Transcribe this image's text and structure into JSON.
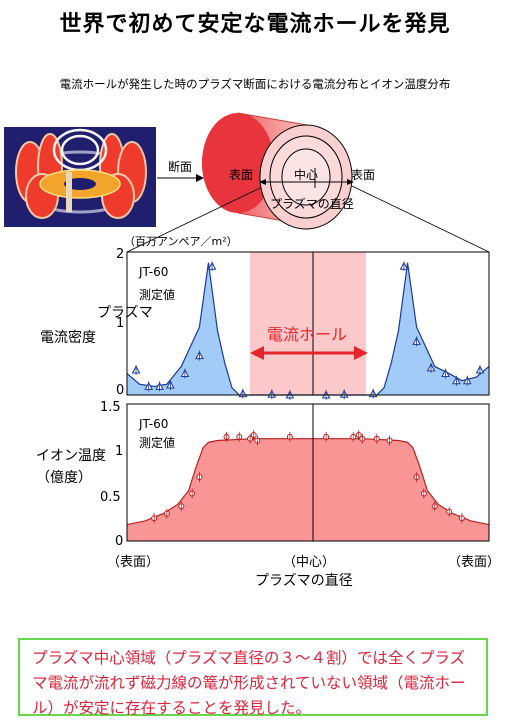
{
  "title": "世界で初めて安定な電流ホールを発見",
  "subtitle": "電流ホールが発生した時のプラズマ断面における電流分布とイオン温度分布",
  "diagram": {
    "cross_section_label": "断面",
    "surface_left": "表面",
    "center": "中心",
    "surface_right": "表面",
    "plasma_diameter": "プラズマの直径"
  },
  "colors": {
    "current_fill": "#a3cbf7",
    "temp_fill": "#f99595",
    "hole_band": "#fbc9c9",
    "hole_text": "#e8242b",
    "note_border": "#6ad64b"
  },
  "chart_data": [
    {
      "type": "area",
      "unit_label": "（百万アンペア／m²）",
      "ylabel_lines": [
        "プラズマ",
        "電流密度"
      ],
      "ylim": [
        0,
        2
      ],
      "yticks": [
        "0",
        "1",
        "2"
      ],
      "annotations": [
        "JT-60",
        "測定値"
      ],
      "hole_label": "電流ホール",
      "x": [
        -1.0,
        -0.93,
        -0.85,
        -0.78,
        -0.7,
        -0.6,
        -0.55,
        -0.5,
        -0.46,
        -0.42,
        -0.38,
        -0.34,
        -0.3,
        -0.24,
        -0.15,
        0.0,
        0.15,
        0.24,
        0.3,
        0.34,
        0.38,
        0.42,
        0.46,
        0.5,
        0.55,
        0.6,
        0.7,
        0.78,
        0.85,
        0.93,
        1.0
      ],
      "values": [
        0.3,
        0.15,
        0.12,
        0.15,
        0.4,
        0.95,
        1.85,
        0.9,
        0.45,
        0.1,
        0.0,
        0.0,
        0.0,
        0.0,
        0.0,
        0.0,
        0.0,
        0.0,
        0.0,
        0.0,
        0.0,
        0.1,
        0.45,
        0.9,
        1.85,
        0.95,
        0.4,
        0.3,
        0.2,
        0.25,
        0.4
      ],
      "points_x": [
        -0.95,
        -0.88,
        -0.82,
        -0.76,
        -0.68,
        -0.6,
        -0.53,
        -0.36,
        -0.2,
        -0.1,
        0.1,
        0.2,
        0.36,
        0.53,
        0.6,
        0.68,
        0.76,
        0.82,
        0.88,
        0.95
      ],
      "points_y": [
        0.35,
        0.12,
        0.12,
        0.14,
        0.3,
        0.55,
        1.8,
        0.02,
        0.01,
        0.0,
        0.0,
        0.01,
        0.02,
        1.8,
        0.75,
        0.38,
        0.3,
        0.2,
        0.2,
        0.35
      ]
    },
    {
      "type": "area",
      "ylabel_lines": [
        "イオン温度",
        "（億度）"
      ],
      "ylim": [
        0,
        1.5
      ],
      "yticks": [
        "0",
        "0.5",
        "1",
        "1.5"
      ],
      "annotations": [
        "JT-60",
        "測定値"
      ],
      "x": [
        -1.0,
        -0.9,
        -0.8,
        -0.72,
        -0.66,
        -0.62,
        -0.58,
        -0.55,
        -0.5,
        -0.3,
        0.0,
        0.3,
        0.5,
        0.55,
        0.58,
        0.62,
        0.66,
        0.72,
        0.8,
        0.9,
        1.0
      ],
      "values": [
        0.18,
        0.22,
        0.3,
        0.4,
        0.55,
        0.8,
        1.02,
        1.08,
        1.1,
        1.12,
        1.12,
        1.12,
        1.1,
        1.08,
        1.02,
        0.8,
        0.55,
        0.4,
        0.3,
        0.22,
        0.18
      ],
      "points_x": [
        -0.85,
        -0.78,
        -0.7,
        -0.64,
        -0.6,
        -0.45,
        -0.38,
        -0.32,
        -0.3,
        -0.28,
        -0.1,
        0.1,
        0.25,
        0.28,
        0.3,
        0.38,
        0.45,
        0.6,
        0.64,
        0.7,
        0.78,
        0.85
      ],
      "points_y": [
        0.25,
        0.3,
        0.38,
        0.52,
        0.7,
        1.14,
        1.14,
        1.12,
        1.16,
        1.1,
        1.14,
        1.14,
        1.14,
        1.16,
        1.12,
        1.12,
        1.1,
        0.7,
        0.52,
        0.38,
        0.32,
        0.25
      ]
    }
  ],
  "x_axis": {
    "tick_left": "（表面）",
    "tick_center": "（中心）",
    "tick_right": "（表面）",
    "label": "プラズマの直径"
  },
  "note": "プラズマ中心領域（プラズマ直径の３～４割）では全くプラズマ電流が流れず磁力線の篭が形成されていない領域（電流ホール）が安定に存在することを発見した。"
}
